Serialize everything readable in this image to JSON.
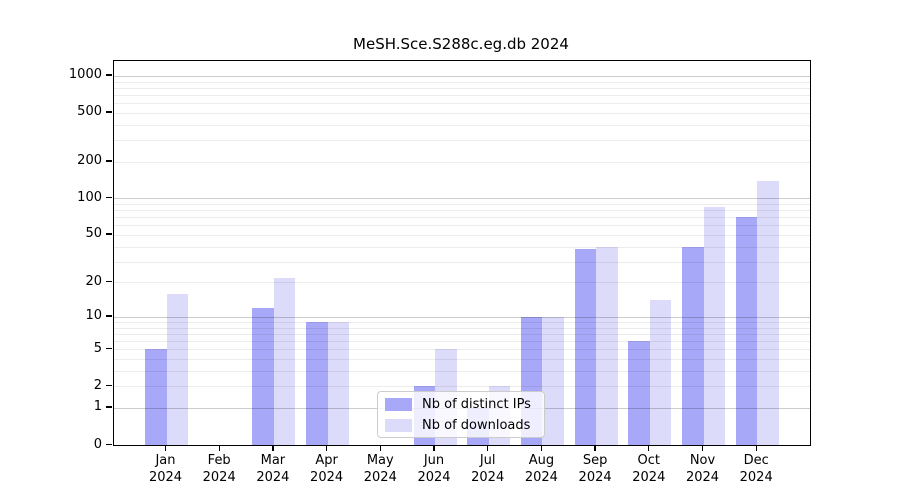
{
  "chart_data": {
    "type": "bar",
    "title": "MeSH.Sce.S288c.eg.db 2024",
    "categories": [
      "Jan",
      "Feb",
      "Mar",
      "Apr",
      "May",
      "Jun",
      "Jul",
      "Aug",
      "Sep",
      "Oct",
      "Nov",
      "Dec"
    ],
    "x_tick_year": "2024",
    "series": [
      {
        "name": "Nb of distinct IPs",
        "key": "distinct-ips",
        "color": "#a8a8f8",
        "values": [
          5,
          0,
          12,
          9,
          0,
          2,
          1,
          10,
          38,
          6,
          40,
          70
        ]
      },
      {
        "name": "Nb of downloads",
        "key": "downloads",
        "color": "#dcdcfa",
        "values": [
          16,
          0,
          22,
          9,
          0,
          5,
          2,
          10,
          40,
          14,
          85,
          140
        ]
      }
    ],
    "xlabel": "",
    "ylabel": "",
    "yscale": "log1p",
    "ylim": [
      0,
      1280
    ],
    "yticks": [
      0,
      1,
      2,
      5,
      10,
      20,
      50,
      100,
      200,
      500,
      1000
    ],
    "grid_major": [
      1,
      10,
      100,
      1000
    ],
    "grid_minor": [
      2,
      3,
      4,
      5,
      6,
      7,
      8,
      9,
      20,
      30,
      40,
      50,
      60,
      70,
      80,
      90,
      200,
      300,
      400,
      500,
      600,
      700,
      800,
      900
    ],
    "grid": "on",
    "legend_position": "bottom-center"
  }
}
